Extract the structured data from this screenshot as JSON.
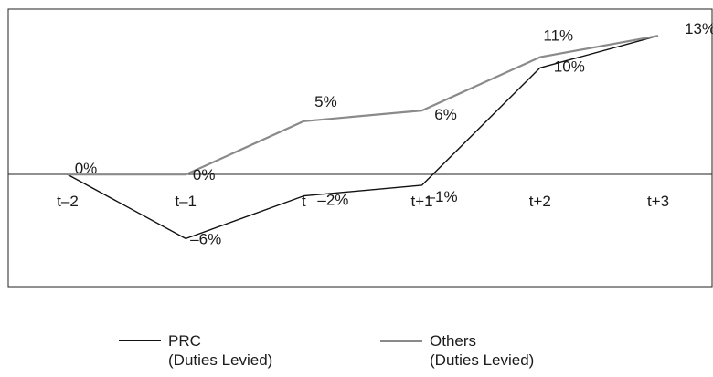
{
  "chart_data": {
    "type": "line",
    "categories": [
      "t–2",
      "t–1",
      "t",
      "t+1",
      "t+2",
      "t+3"
    ],
    "series": [
      {
        "name": "PRC (Duties Levied)",
        "legend_lines": [
          "PRC",
          "(Duties Levied)"
        ],
        "values": [
          0,
          -6,
          -2,
          -1,
          10,
          13
        ],
        "labels": [
          "",
          "–6%",
          "–2%",
          "–1%",
          "10%",
          ""
        ],
        "color": "#111111"
      },
      {
        "name": "Others (Duties Levied)",
        "legend_lines": [
          "Others",
          "(Duties Levied)"
        ],
        "values": [
          0,
          0,
          5,
          6,
          11,
          13
        ],
        "labels": [
          "0%",
          "0%",
          "5%",
          "6%",
          "11%",
          "13%"
        ],
        "color": "#8a8a8a"
      }
    ],
    "ylim": [
      -10.5,
      15.5
    ],
    "grid": false,
    "zero_line": true,
    "legend_position": "bottom"
  }
}
